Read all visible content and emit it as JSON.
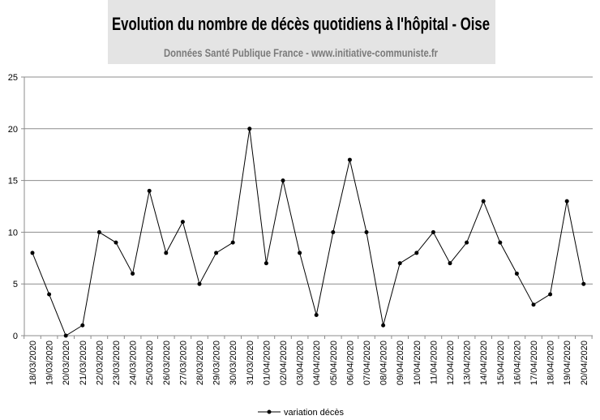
{
  "chart_data": {
    "type": "line",
    "title": "Evolution du nombre de décès quotidiens  à l'hôpital - Oise",
    "subtitle": "Données Santé Publique France - www.initiative-communiste.fr",
    "xlabel": "",
    "ylabel": "",
    "ylim": [
      0,
      25
    ],
    "yticks": [
      0,
      5,
      10,
      15,
      20,
      25
    ],
    "grid": true,
    "legend_position": "bottom",
    "categories": [
      "18/03/2020",
      "19/03/2020",
      "20/03/2020",
      "21/03/2020",
      "22/03/2020",
      "23/03/2020",
      "24/03/2020",
      "25/03/2020",
      "26/03/2020",
      "27/03/2020",
      "28/03/2020",
      "29/03/2020",
      "30/03/2020",
      "31/03/2020",
      "01/04/2020",
      "02/04/2020",
      "03/04/2020",
      "04/04/2020",
      "05/04/2020",
      "06/04/2020",
      "07/04/2020",
      "08/04/2020",
      "09/04/2020",
      "10/04/2020",
      "11/04/2020",
      "12/04/2020",
      "13/04/2020",
      "14/04/2020",
      "15/04/2020",
      "16/04/2020",
      "17/04/2020",
      "18/04/2020",
      "19/04/2020",
      "20/04/2020"
    ],
    "series": [
      {
        "name": "variation décès",
        "color": "#000000",
        "values": [
          8,
          4,
          0,
          1,
          10,
          9,
          6,
          14,
          8,
          11,
          5,
          8,
          9,
          20,
          7,
          15,
          8,
          2,
          10,
          17,
          10,
          1,
          7,
          8,
          10,
          7,
          9,
          13,
          9,
          6,
          3,
          4,
          13,
          5
        ]
      }
    ]
  }
}
